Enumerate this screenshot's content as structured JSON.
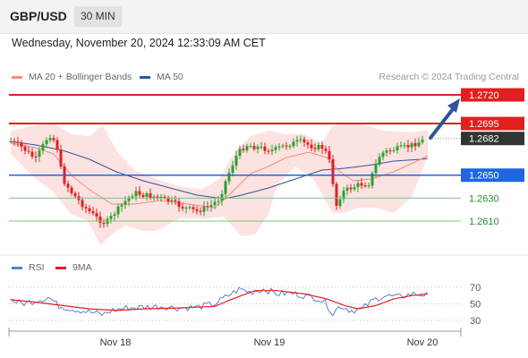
{
  "header": {
    "symbol": "GBP/USD",
    "timeframe": "30 MIN"
  },
  "timestamp": "Wednesday, November 20, 2024 12:33:09 AM CET",
  "legend": [
    {
      "label": "MA 20 + Bollinger Bands",
      "color": "#f28b82"
    },
    {
      "label": "MA 50",
      "color": "#2f5597"
    }
  ],
  "credit": "Research © 2024 Trading Central",
  "price_levels": [
    {
      "value": 1.272,
      "label": "1.2720",
      "kind": "resistance-line",
      "color": "#e01f1f"
    },
    {
      "value": 1.2695,
      "label": "1.2695",
      "kind": "resistance-line",
      "color": "#e01f1f"
    },
    {
      "value": 1.2682,
      "label": "1.2682",
      "kind": "last-price",
      "color": "#333333"
    },
    {
      "value": 1.265,
      "label": "1.2650",
      "kind": "pivot-line",
      "color": "#1f66e0"
    },
    {
      "value": 1.263,
      "label": "1.2630",
      "kind": "support-line",
      "color": "#2e8b2e"
    },
    {
      "value": 1.261,
      "label": "1.2610",
      "kind": "support-line",
      "color": "#2e8b2e"
    }
  ],
  "rsi_panel": {
    "legend": [
      {
        "label": "RSI",
        "color": "#5b7fd6"
      },
      {
        "label": "9MA",
        "color": "#e01f1f"
      }
    ],
    "ticks": [
      "70",
      "50",
      "30"
    ]
  },
  "x_axis": {
    "labels": [
      "Nov 18",
      "Nov 19",
      "Nov 20"
    ]
  },
  "colors": {
    "up": "#2ca02c",
    "down": "#e01f1f",
    "band": "#fde2e2",
    "ma50": "#2f5597",
    "ma20": "#f28b82"
  }
}
